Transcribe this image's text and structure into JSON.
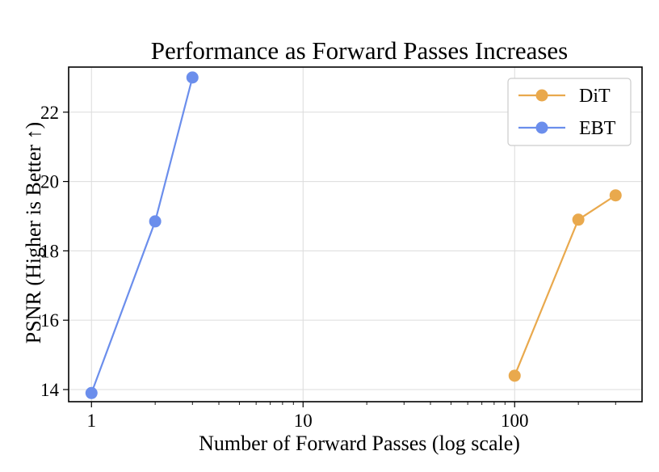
{
  "chart_data": {
    "type": "line",
    "title": "Performance as Forward Passes Increases",
    "xlabel": "Number of Forward Passes (log scale)",
    "ylabel": "PSNR (Higher is Better ↑)",
    "x_scale": "log",
    "xlim": [
      0.78,
      400
    ],
    "ylim": [
      13.65,
      23.3
    ],
    "x_ticks": [
      1,
      10,
      100
    ],
    "x_tick_labels": [
      "1",
      "10",
      "100"
    ],
    "y_ticks": [
      14,
      16,
      18,
      20,
      22
    ],
    "y_tick_labels": [
      "14",
      "16",
      "18",
      "20",
      "22"
    ],
    "grid": true,
    "legend_position": "top-right",
    "series": [
      {
        "name": "DiT",
        "color": "#e9a94d",
        "x": [
          100,
          200,
          300
        ],
        "y": [
          14.4,
          18.9,
          19.6
        ]
      },
      {
        "name": "EBT",
        "color": "#6b8eec",
        "x": [
          1,
          2,
          3
        ],
        "y": [
          13.9,
          18.85,
          23.0
        ]
      }
    ]
  }
}
